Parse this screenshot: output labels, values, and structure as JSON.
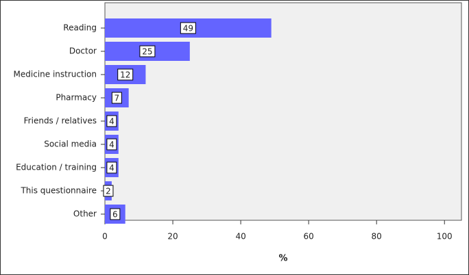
{
  "chart_data": {
    "type": "bar",
    "orientation": "horizontal",
    "x_label": "%",
    "categories": [
      "Reading",
      "Doctor",
      "Medicine instruction",
      "Pharmacy",
      "Friends / relatives",
      "Social media",
      "Education / training",
      "This questionnaire",
      "Other"
    ],
    "values": [
      49,
      25,
      12,
      7,
      4,
      4,
      4,
      2,
      6
    ],
    "color": "#6464ff",
    "xlim": [
      0,
      105
    ],
    "xticks": [
      0,
      20,
      40,
      60,
      80,
      100
    ]
  }
}
